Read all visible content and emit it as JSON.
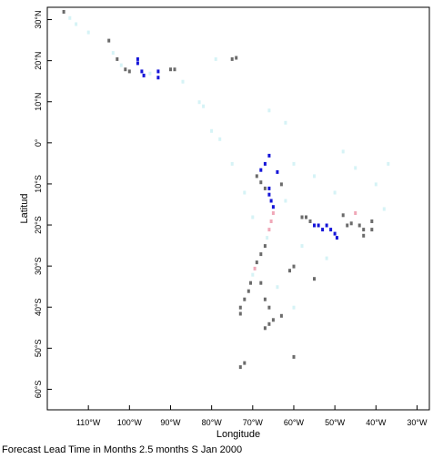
{
  "map": {
    "xlabel": "Longitude",
    "ylabel": "Latitud",
    "lon_range": [
      -120,
      -27
    ],
    "lat_range": [
      -65,
      33
    ],
    "lon_ticks": [
      {
        "lon": -110,
        "label": "110°W"
      },
      {
        "lon": -100,
        "label": "100°W"
      },
      {
        "lon": -90,
        "label": "90°W"
      },
      {
        "lon": -80,
        "label": "80°W"
      },
      {
        "lon": -70,
        "label": "70°W"
      },
      {
        "lon": -60,
        "label": "60°W"
      },
      {
        "lon": -50,
        "label": "50°W"
      },
      {
        "lon": -40,
        "label": "40°W"
      },
      {
        "lon": -30,
        "label": "30°W"
      }
    ],
    "lat_ticks": [
      {
        "lat": 30,
        "label": "30°N"
      },
      {
        "lat": 20,
        "label": "20°N"
      },
      {
        "lat": 10,
        "label": "10°N"
      },
      {
        "lat": 0,
        "label": "0°"
      },
      {
        "lat": -10,
        "label": "10°S"
      },
      {
        "lat": -20,
        "label": "20°S"
      },
      {
        "lat": -30,
        "label": "30°S"
      },
      {
        "lat": -40,
        "label": "40°S"
      },
      {
        "lat": -50,
        "label": "50°S"
      },
      {
        "lat": -60,
        "label": "60°S"
      }
    ],
    "colors": {
      "gray": "#6b6b6b",
      "blue": "#1515d8",
      "pink": "#f0a8b8",
      "lightcyan": "#d6f3f6",
      "frame": "#000000"
    },
    "cells": [
      {
        "lon": -116,
        "lat": 32,
        "c": "gray"
      },
      {
        "lon": -114.5,
        "lat": 30.5,
        "c": "lightcyan"
      },
      {
        "lon": -113,
        "lat": 29,
        "c": "lightcyan"
      },
      {
        "lon": -110,
        "lat": 27,
        "c": "lightcyan"
      },
      {
        "lon": -105,
        "lat": 25,
        "c": "gray"
      },
      {
        "lon": -104,
        "lat": 22,
        "c": "lightcyan"
      },
      {
        "lon": -103,
        "lat": 20.5,
        "c": "gray"
      },
      {
        "lon": -102,
        "lat": 19,
        "c": "lightcyan"
      },
      {
        "lon": -101,
        "lat": 18,
        "c": "gray"
      },
      {
        "lon": -100,
        "lat": 17.5,
        "c": "gray"
      },
      {
        "lon": -98,
        "lat": 20.5,
        "c": "blue"
      },
      {
        "lon": -98,
        "lat": 19.5,
        "c": "blue"
      },
      {
        "lon": -97,
        "lat": 17.5,
        "c": "blue"
      },
      {
        "lon": -96.5,
        "lat": 16.5,
        "c": "blue"
      },
      {
        "lon": -95,
        "lat": 17,
        "c": "lightcyan"
      },
      {
        "lon": -93,
        "lat": 17.5,
        "c": "blue"
      },
      {
        "lon": -93,
        "lat": 16,
        "c": "blue"
      },
      {
        "lon": -90,
        "lat": 18,
        "c": "gray"
      },
      {
        "lon": -89,
        "lat": 18,
        "c": "gray"
      },
      {
        "lon": -87,
        "lat": 15,
        "c": "lightcyan"
      },
      {
        "lon": -83,
        "lat": 10,
        "c": "lightcyan"
      },
      {
        "lon": -82,
        "lat": 9,
        "c": "lightcyan"
      },
      {
        "lon": -79,
        "lat": 20.5,
        "c": "lightcyan"
      },
      {
        "lon": -75,
        "lat": 20.5,
        "c": "gray"
      },
      {
        "lon": -74,
        "lat": 20.8,
        "c": "gray"
      },
      {
        "lon": -80,
        "lat": 3,
        "c": "lightcyan"
      },
      {
        "lon": -78,
        "lat": 1,
        "c": "lightcyan"
      },
      {
        "lon": -66,
        "lat": -3,
        "c": "blue"
      },
      {
        "lon": -67,
        "lat": -5,
        "c": "blue"
      },
      {
        "lon": -68,
        "lat": -6.5,
        "c": "blue"
      },
      {
        "lon": -69,
        "lat": -8,
        "c": "gray"
      },
      {
        "lon": -68,
        "lat": -9.5,
        "c": "gray"
      },
      {
        "lon": -67,
        "lat": -11,
        "c": "gray"
      },
      {
        "lon": -66,
        "lat": -11,
        "c": "blue"
      },
      {
        "lon": -66,
        "lat": -12.5,
        "c": "blue"
      },
      {
        "lon": -65.5,
        "lat": -14,
        "c": "blue"
      },
      {
        "lon": -65,
        "lat": -15.5,
        "c": "blue"
      },
      {
        "lon": -64,
        "lat": -7,
        "c": "blue"
      },
      {
        "lon": -63,
        "lat": -10,
        "c": "gray"
      },
      {
        "lon": -65,
        "lat": -17,
        "c": "pink"
      },
      {
        "lon": -65.5,
        "lat": -19,
        "c": "pink"
      },
      {
        "lon": -66,
        "lat": -21,
        "c": "pink"
      },
      {
        "lon": -66.5,
        "lat": -23,
        "c": "lightcyan"
      },
      {
        "lon": -67,
        "lat": -25,
        "c": "gray"
      },
      {
        "lon": -68,
        "lat": -27,
        "c": "gray"
      },
      {
        "lon": -69,
        "lat": -29,
        "c": "gray"
      },
      {
        "lon": -69.5,
        "lat": -30.5,
        "c": "pink"
      },
      {
        "lon": -70,
        "lat": -32,
        "c": "lightcyan"
      },
      {
        "lon": -70.5,
        "lat": -34,
        "c": "gray"
      },
      {
        "lon": -71,
        "lat": -36,
        "c": "gray"
      },
      {
        "lon": -72,
        "lat": -38,
        "c": "gray"
      },
      {
        "lon": -73,
        "lat": -40,
        "c": "gray"
      },
      {
        "lon": -73,
        "lat": -41.5,
        "c": "gray"
      },
      {
        "lon": -68,
        "lat": -34,
        "c": "gray"
      },
      {
        "lon": -67,
        "lat": -38,
        "c": "gray"
      },
      {
        "lon": -66,
        "lat": -40,
        "c": "gray"
      },
      {
        "lon": -65,
        "lat": -43,
        "c": "gray"
      },
      {
        "lon": -66,
        "lat": -44,
        "c": "gray"
      },
      {
        "lon": -67,
        "lat": -45,
        "c": "gray"
      },
      {
        "lon": -63,
        "lat": -42,
        "c": "gray"
      },
      {
        "lon": -60,
        "lat": -30,
        "c": "gray"
      },
      {
        "lon": -61,
        "lat": -31,
        "c": "gray"
      },
      {
        "lon": -58,
        "lat": -18,
        "c": "gray"
      },
      {
        "lon": -57,
        "lat": -18,
        "c": "gray"
      },
      {
        "lon": -56,
        "lat": -19,
        "c": "gray"
      },
      {
        "lon": -55,
        "lat": -20,
        "c": "blue"
      },
      {
        "lon": -54,
        "lat": -20,
        "c": "blue"
      },
      {
        "lon": -53,
        "lat": -21,
        "c": "blue"
      },
      {
        "lon": -52,
        "lat": -20,
        "c": "blue"
      },
      {
        "lon": -51,
        "lat": -21,
        "c": "blue"
      },
      {
        "lon": -50,
        "lat": -22,
        "c": "blue"
      },
      {
        "lon": -49.5,
        "lat": -23,
        "c": "blue"
      },
      {
        "lon": -48,
        "lat": -17.5,
        "c": "gray"
      },
      {
        "lon": -47,
        "lat": -20,
        "c": "gray"
      },
      {
        "lon": -46,
        "lat": -19.5,
        "c": "gray"
      },
      {
        "lon": -44,
        "lat": -20,
        "c": "gray"
      },
      {
        "lon": -43,
        "lat": -21,
        "c": "gray"
      },
      {
        "lon": -43,
        "lat": -22.5,
        "c": "gray"
      },
      {
        "lon": -41,
        "lat": -19,
        "c": "gray"
      },
      {
        "lon": -41,
        "lat": -21,
        "c": "gray"
      },
      {
        "lon": -45,
        "lat": -17,
        "c": "pink"
      },
      {
        "lon": -55,
        "lat": -33,
        "c": "gray"
      },
      {
        "lon": -60,
        "lat": -52,
        "c": "gray"
      },
      {
        "lon": -73,
        "lat": -54.5,
        "c": "gray"
      },
      {
        "lon": -72,
        "lat": -53.5,
        "c": "gray"
      },
      {
        "lon": -60,
        "lat": -5,
        "c": "lightcyan"
      },
      {
        "lon": -55,
        "lat": -8,
        "c": "lightcyan"
      },
      {
        "lon": -50,
        "lat": -12,
        "c": "lightcyan"
      },
      {
        "lon": -45,
        "lat": -6,
        "c": "lightcyan"
      },
      {
        "lon": -40,
        "lat": -10,
        "c": "lightcyan"
      },
      {
        "lon": -62,
        "lat": -14,
        "c": "lightcyan"
      },
      {
        "lon": -58,
        "lat": -25,
        "c": "lightcyan"
      },
      {
        "lon": -52,
        "lat": -28,
        "c": "lightcyan"
      },
      {
        "lon": -48,
        "lat": -2,
        "c": "lightcyan"
      },
      {
        "lon": -70,
        "lat": -18,
        "c": "lightcyan"
      },
      {
        "lon": -72,
        "lat": -12,
        "c": "lightcyan"
      },
      {
        "lon": -75,
        "lat": -5,
        "c": "lightcyan"
      },
      {
        "lon": -62,
        "lat": 5,
        "c": "lightcyan"
      },
      {
        "lon": -66,
        "lat": 8,
        "c": "lightcyan"
      },
      {
        "lon": -38,
        "lat": -16,
        "c": "lightcyan"
      },
      {
        "lon": -37,
        "lat": -5,
        "c": "lightcyan"
      },
      {
        "lon": -64,
        "lat": -35,
        "c": "lightcyan"
      },
      {
        "lon": -60,
        "lat": -40,
        "c": "lightcyan"
      }
    ]
  },
  "caption": "Forecast Lead Time in Months 2.5 months S Jan 2000"
}
